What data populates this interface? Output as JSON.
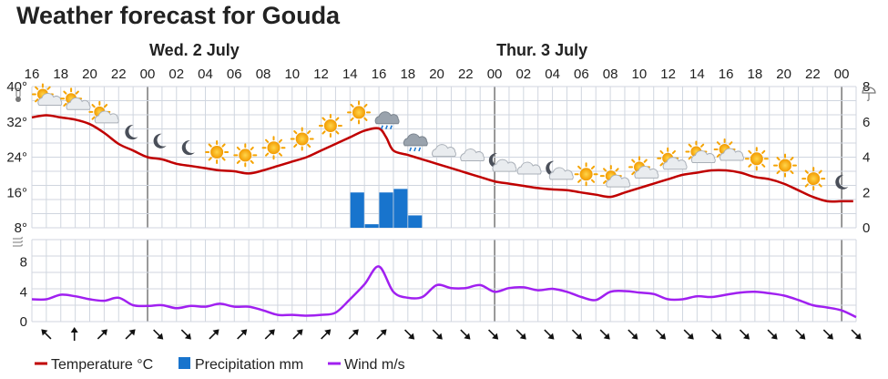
{
  "title": "Weather forecast for Gouda",
  "chart_data": [
    {
      "type": "line",
      "panel": "temperature-precipitation",
      "day_labels": [
        {
          "label": "Wed. 2 July",
          "at_hour": 24
        },
        {
          "label": "Thur. 3 July",
          "at_hour": 48
        }
      ],
      "x_hour_labels": [
        "16",
        "18",
        "20",
        "22",
        "00",
        "02",
        "04",
        "06",
        "08",
        "10",
        "12",
        "14",
        "16",
        "18",
        "20",
        "22",
        "00",
        "02",
        "04",
        "06",
        "08",
        "10",
        "12",
        "14",
        "16",
        "18",
        "20",
        "22",
        "00"
      ],
      "left_axis": {
        "ticks": [
          "40°",
          "32°",
          "24°",
          "16°",
          "8°"
        ],
        "tick_values": [
          40,
          32,
          24,
          16,
          8
        ],
        "ylim": [
          8,
          40
        ],
        "icon": "thermometer-icon"
      },
      "right_axis": {
        "ticks": [
          "8",
          "6",
          "4",
          "2",
          "0"
        ],
        "tick_values": [
          8,
          6,
          4,
          2,
          0
        ],
        "ylim": [
          0,
          8
        ],
        "icon": "umbrella-icon"
      },
      "series": [
        {
          "name": "Temperature °C",
          "color": "#c00000",
          "x": [
            16,
            17,
            18,
            19,
            20,
            21,
            22,
            23,
            24,
            25,
            26,
            27,
            28,
            29,
            30,
            31,
            32,
            33,
            34,
            35,
            36,
            37,
            38,
            39,
            40,
            40.5,
            41,
            42,
            43,
            44,
            45,
            46,
            47,
            48,
            49,
            50,
            51,
            52,
            53,
            54,
            55,
            56,
            57,
            58,
            59,
            60,
            61,
            62,
            63,
            64,
            65,
            66,
            67,
            68,
            69,
            70,
            71,
            72,
            72.8
          ],
          "y": [
            33,
            33.5,
            33,
            32.5,
            31.5,
            29.5,
            27,
            25.5,
            24,
            23.5,
            22.5,
            22,
            21.5,
            21,
            20.8,
            20.3,
            21,
            22,
            23,
            24,
            25.5,
            27,
            28.5,
            30,
            30.5,
            28.5,
            25.5,
            24.5,
            23.5,
            22.5,
            21.5,
            20.5,
            19.5,
            18.5,
            18,
            17.5,
            17,
            16.7,
            16.5,
            16,
            15.5,
            15,
            16,
            17,
            18,
            19,
            20,
            20.5,
            21,
            21,
            20.5,
            19.5,
            19,
            18,
            16.5,
            15,
            14,
            14,
            14
          ]
        },
        {
          "name": "Precipitation mm",
          "type": "bar",
          "color": "#1874cd",
          "x": [
            38.5,
            39.5,
            40.5,
            41.5,
            42.5
          ],
          "values": [
            2.0,
            0.2,
            2.0,
            2.2,
            0.7
          ]
        }
      ],
      "weather_icons": [
        "sun-cloud-icon",
        "sun-cloud-icon",
        "sun-cloud-icon",
        "moon-icon",
        "moon-icon",
        "moon-icon",
        "sun-icon",
        "sun-icon",
        "sun-icon",
        "sun-icon",
        "sun-icon",
        "sun-icon",
        "rain-cloud-icon",
        "rain-cloud-icon",
        "cloud-icon",
        "cloud-icon",
        "moon-cloud-icon",
        "cloud-icon",
        "moon-cloud-icon",
        "sun-icon",
        "sun-cloud-icon",
        "sun-cloud-icon",
        "sun-cloud-icon",
        "sun-cloud-icon",
        "sun-cloud-icon",
        "sun-icon",
        "sun-icon",
        "sun-icon",
        "moon-icon"
      ]
    },
    {
      "type": "line",
      "panel": "wind",
      "left_axis": {
        "ticks": [
          "8",
          "4",
          "0"
        ],
        "tick_values": [
          8,
          4,
          0
        ],
        "ylim": [
          0,
          11
        ],
        "icon": "wind-icon"
      },
      "series": [
        {
          "name": "Wind m/s",
          "color": "#a020f0",
          "x": [
            16,
            17,
            18,
            19,
            20,
            21,
            22,
            23,
            24,
            25,
            26,
            27,
            28,
            29,
            30,
            31,
            32,
            33,
            34,
            35,
            36,
            37,
            38,
            39,
            40,
            41,
            42,
            43,
            44,
            45,
            46,
            47,
            48,
            49,
            50,
            51,
            52,
            53,
            54,
            55,
            56,
            57,
            58,
            59,
            60,
            61,
            62,
            63,
            64,
            65,
            66,
            67,
            68,
            69,
            70,
            71,
            72,
            73
          ],
          "y": [
            3,
            3,
            3.6,
            3.4,
            3,
            2.8,
            3.2,
            2.2,
            2.1,
            2.2,
            1.8,
            2.1,
            2,
            2.4,
            2,
            2,
            1.5,
            0.9,
            0.9,
            0.8,
            0.9,
            1.2,
            3,
            5,
            7.4,
            4,
            3.2,
            3.3,
            4.9,
            4.5,
            4.5,
            4.9,
            4,
            4.5,
            4.6,
            4.2,
            4.4,
            4,
            3.3,
            2.9,
            4,
            4.1,
            3.9,
            3.7,
            3,
            3,
            3.4,
            3.3,
            3.6,
            3.9,
            4,
            3.8,
            3.5,
            2.9,
            2.2,
            1.9,
            1.5,
            0.6
          ]
        }
      ],
      "wind_arrows": [
        "nw",
        "n",
        "ne",
        "ne",
        "se",
        "se",
        "ne",
        "ne",
        "ne",
        "ne",
        "ne",
        "ne",
        "ne",
        "se",
        "se",
        "se",
        "se",
        "se",
        "se",
        "se",
        "se",
        "se",
        "se",
        "se",
        "se",
        "se",
        "se",
        "se",
        "se",
        "se"
      ]
    }
  ],
  "legend": [
    {
      "label": "Temperature °C",
      "marker": "line",
      "color": "#c00000"
    },
    {
      "label": "Precipitation mm",
      "marker": "square",
      "color": "#1874cd"
    },
    {
      "label": "Wind m/s",
      "marker": "line",
      "color": "#a020f0"
    }
  ]
}
